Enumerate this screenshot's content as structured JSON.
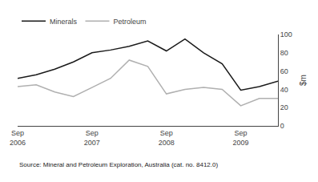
{
  "chart_data": {
    "type": "line",
    "categories": [
      "Sep\n2006",
      null,
      null,
      null,
      "Sep\n2007",
      null,
      null,
      null,
      "Sep\n2008",
      null,
      null,
      null,
      "Sep\n2009",
      null,
      null
    ],
    "series": [
      {
        "name": "Minerals",
        "color": "#1a1a1a",
        "values": [
          52,
          56,
          62,
          70,
          80,
          83,
          87,
          93,
          82,
          95,
          80,
          68,
          39,
          43,
          49
        ]
      },
      {
        "name": "Petroleum",
        "color": "#b0b0b0",
        "values": [
          43,
          45,
          37,
          32,
          42,
          52,
          72,
          65,
          35,
          40,
          42,
          40,
          22,
          30,
          30
        ]
      }
    ],
    "ylabel": "$m",
    "annotations": [
      "Source: Mineral and Petroleum Exploration, Australia (cat. no. 8412.0)"
    ],
    "ylim": [
      0,
      100
    ],
    "yticks": [
      0,
      20,
      40,
      60,
      80,
      100
    ],
    "grid": false,
    "legend": "upper left"
  }
}
